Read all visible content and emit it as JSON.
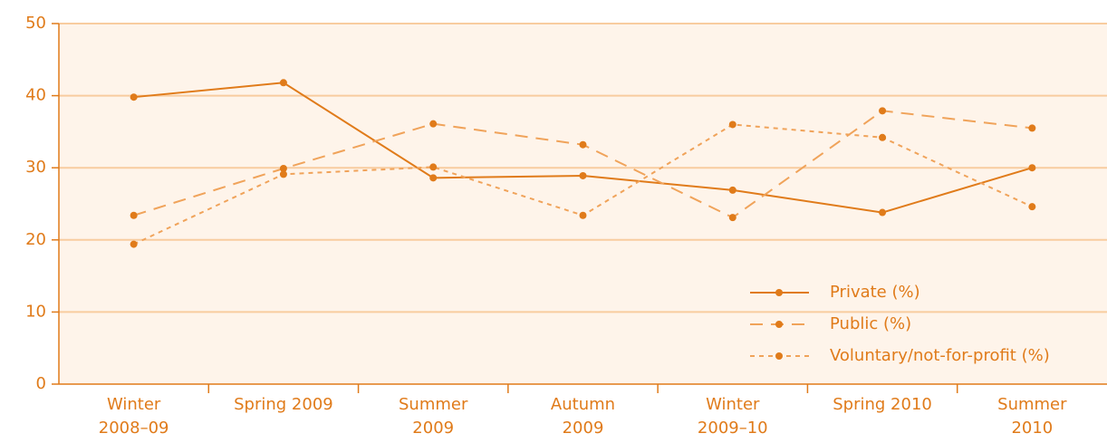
{
  "chart_data": {
    "type": "line",
    "categories": [
      "Winter 2008–09",
      "Spring 2009",
      "Summer 2009",
      "Autumn 2009",
      "Winter 2009–10",
      "Spring 2010",
      "Summer 2010"
    ],
    "series": [
      {
        "name": "Private (%)",
        "color": "#e07b1a",
        "dash": "solid",
        "values": [
          39.8,
          41.8,
          28.6,
          28.9,
          26.9,
          23.8,
          30.0
        ]
      },
      {
        "name": "Public (%)",
        "color": "#f0a35a",
        "dash": "dashed",
        "values": [
          23.4,
          29.9,
          36.1,
          33.2,
          23.1,
          37.9,
          35.5
        ]
      },
      {
        "name": "Voluntary/not-for-profit (%)",
        "color": "#f0a35a",
        "dash": "dotted",
        "values": [
          19.4,
          29.1,
          30.1,
          23.4,
          36.0,
          34.2,
          24.6
        ]
      }
    ],
    "ylim": [
      0,
      50
    ],
    "yticks": [
      0,
      10,
      20,
      30,
      40,
      50
    ],
    "grid": true,
    "legend": "lower right"
  }
}
